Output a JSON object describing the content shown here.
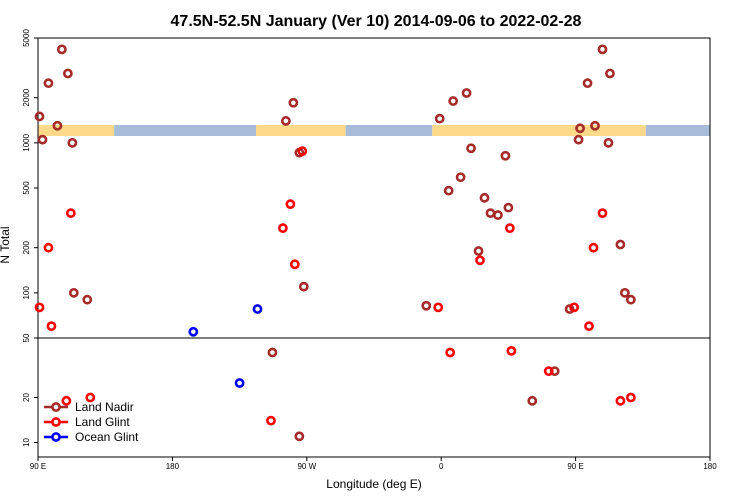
{
  "chart_data": {
    "type": "scatter",
    "title": "47.5N-52.5N January (Ver 10)   2014-09-06 to 2022-02-28",
    "xlabel": "Longitude (deg E)",
    "ylabel": "N Total",
    "x_ticks": [
      {
        "value": 90,
        "label": "90 E"
      },
      {
        "value": 180,
        "label": "180"
      },
      {
        "value": 270,
        "label": "90 W"
      },
      {
        "value": 360,
        "label": "0"
      },
      {
        "value": 450,
        "label": "90 E"
      },
      {
        "value": 540,
        "label": "180"
      }
    ],
    "xlim": [
      90,
      540
    ],
    "y_upper_ticks": [
      100,
      200,
      500,
      1000,
      2000,
      5000
    ],
    "y_upper_lim": [
      50,
      5000
    ],
    "y_lower_ticks": [
      10,
      20
    ],
    "y_lower_lim": [
      8,
      50
    ],
    "axis_break_value": 50,
    "log_scale": true,
    "land_ocean_strip": {
      "land_color": "#ffd98a",
      "ocean_color": "#a6bcd9",
      "segments": [
        {
          "type": "land",
          "x": [
            90,
            141
          ]
        },
        {
          "type": "ocean",
          "x": [
            141,
            236
          ]
        },
        {
          "type": "land",
          "x": [
            236,
            296
          ]
        },
        {
          "type": "ocean",
          "x": [
            296,
            354
          ]
        },
        {
          "type": "land",
          "x": [
            354,
            497
          ]
        },
        {
          "type": "ocean",
          "x": [
            497,
            540
          ]
        }
      ]
    },
    "legend_position": "bottom-left",
    "series": [
      {
        "name": "Land Nadir",
        "color": "#a52a2a",
        "points": [
          [
            91,
            1500
          ],
          [
            93,
            1050
          ],
          [
            103,
            1300
          ],
          [
            97,
            2500
          ],
          [
            113,
            1000
          ],
          [
            114,
            100
          ],
          [
            106,
            4200
          ],
          [
            110,
            2900
          ],
          [
            123,
            90
          ],
          [
            247,
            40
          ],
          [
            256,
            1400
          ],
          [
            261,
            1850
          ],
          [
            265,
            860
          ],
          [
            268,
            110
          ],
          [
            265,
            11
          ],
          [
            350,
            82
          ],
          [
            359,
            1450
          ],
          [
            365,
            480
          ],
          [
            368,
            1900
          ],
          [
            373,
            590
          ],
          [
            377,
            2150
          ],
          [
            380,
            920
          ],
          [
            385,
            190
          ],
          [
            389,
            430
          ],
          [
            393,
            340
          ],
          [
            398,
            330
          ],
          [
            403,
            820
          ],
          [
            405,
            370
          ],
          [
            421,
            19
          ],
          [
            436,
            30
          ],
          [
            446,
            78
          ],
          [
            452,
            1050
          ],
          [
            458,
            2500
          ],
          [
            453,
            1250
          ],
          [
            468,
            4200
          ],
          [
            463,
            1300
          ],
          [
            473,
            2900
          ],
          [
            472,
            1000
          ],
          [
            480,
            210
          ],
          [
            483,
            100
          ],
          [
            487,
            90
          ]
        ]
      },
      {
        "name": "Land Glint",
        "color": "#ff0000",
        "points": [
          [
            91,
            80
          ],
          [
            99,
            60
          ],
          [
            97,
            200
          ],
          [
            109,
            19
          ],
          [
            112,
            340
          ],
          [
            125,
            20
          ],
          [
            246,
            14
          ],
          [
            254,
            270
          ],
          [
            259,
            390
          ],
          [
            262,
            155
          ],
          [
            267,
            880
          ],
          [
            358,
            80
          ],
          [
            366,
            40
          ],
          [
            386,
            165
          ],
          [
            406,
            270
          ],
          [
            407,
            41
          ],
          [
            432,
            30
          ],
          [
            449,
            80
          ],
          [
            459,
            60
          ],
          [
            462,
            200
          ],
          [
            468,
            340
          ],
          [
            480,
            19
          ],
          [
            487,
            20
          ]
        ]
      },
      {
        "name": "Ocean Glint",
        "color": "#0000ff",
        "points": [
          [
            194,
            55
          ],
          [
            225,
            25
          ],
          [
            237,
            78
          ]
        ]
      }
    ]
  }
}
